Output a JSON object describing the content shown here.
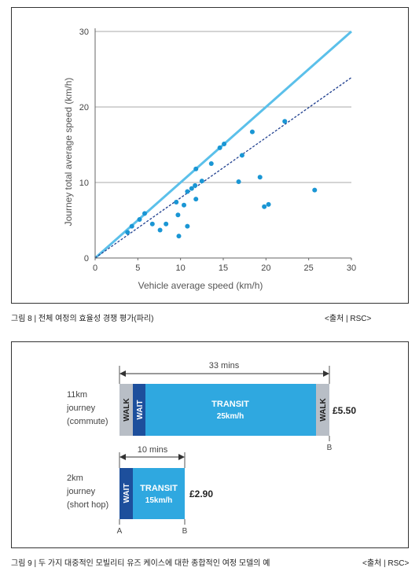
{
  "chart_data": [
    {
      "type": "scatter",
      "xlabel": "Vehicle average speed (km/h)",
      "ylabel": "Journey total average speed (km/h)",
      "xlim": [
        0,
        30
      ],
      "ylim": [
        0,
        30
      ],
      "xticks": [
        "0",
        "5",
        "10",
        "15",
        "20",
        "25",
        "30"
      ],
      "yticks": [
        "0",
        "10",
        "20",
        "30"
      ],
      "grid": "horizontal",
      "colors": {
        "points": "#1a96d4",
        "identity_line": "#5bc0ea",
        "trend_line": "#1f3f8f",
        "grid": "#aaaaaa"
      },
      "lines": [
        {
          "style": "solid",
          "x": [
            0,
            30
          ],
          "y": [
            0,
            30
          ]
        },
        {
          "style": "dashed",
          "x": [
            0,
            30
          ],
          "y": [
            0,
            23.9
          ]
        }
      ],
      "points": [
        {
          "x": 3.8,
          "y": 3.4
        },
        {
          "x": 4.3,
          "y": 4.2
        },
        {
          "x": 5.2,
          "y": 5.1
        },
        {
          "x": 5.8,
          "y": 5.9
        },
        {
          "x": 6.7,
          "y": 4.5
        },
        {
          "x": 7.6,
          "y": 3.7
        },
        {
          "x": 8.3,
          "y": 4.5
        },
        {
          "x": 9.5,
          "y": 7.4
        },
        {
          "x": 9.7,
          "y": 5.7
        },
        {
          "x": 9.8,
          "y": 2.9
        },
        {
          "x": 10.4,
          "y": 7.0
        },
        {
          "x": 10.8,
          "y": 4.2
        },
        {
          "x": 10.8,
          "y": 8.8
        },
        {
          "x": 11.3,
          "y": 9.2
        },
        {
          "x": 11.7,
          "y": 9.6
        },
        {
          "x": 11.8,
          "y": 7.8
        },
        {
          "x": 11.8,
          "y": 11.8
        },
        {
          "x": 12.5,
          "y": 10.2
        },
        {
          "x": 13.6,
          "y": 12.5
        },
        {
          "x": 14.6,
          "y": 14.6
        },
        {
          "x": 15.1,
          "y": 15.1
        },
        {
          "x": 16.8,
          "y": 10.1
        },
        {
          "x": 17.2,
          "y": 13.6
        },
        {
          "x": 18.4,
          "y": 16.7
        },
        {
          "x": 19.3,
          "y": 10.7
        },
        {
          "x": 19.8,
          "y": 6.8
        },
        {
          "x": 20.3,
          "y": 7.1
        },
        {
          "x": 22.2,
          "y": 18.1
        },
        {
          "x": 25.7,
          "y": 9.0
        }
      ]
    },
    {
      "type": "bar",
      "orientation": "horizontal-timeline",
      "colors": {
        "walk": "#b8bec6",
        "wait": "#1d4f9c",
        "transit": "#2fa8e0"
      },
      "journeys": [
        {
          "label": [
            "11km",
            "journey",
            "(commute)"
          ],
          "span_label": "33 mins",
          "duration_mins": 33,
          "segments": [
            {
              "kind": "walk",
              "label": "WALK"
            },
            {
              "kind": "wait",
              "label": "WAIT"
            },
            {
              "kind": "transit",
              "label": "TRANSIT",
              "sublabel": "25km/h"
            },
            {
              "kind": "walk",
              "label": "WALK"
            }
          ],
          "price": "£5.50",
          "end_label": "B"
        },
        {
          "label": [
            "2km",
            "journey",
            "(short hop)"
          ],
          "span_label": "10 mins",
          "duration_mins": 10,
          "segments": [
            {
              "kind": "wait",
              "label": "WAIT"
            },
            {
              "kind": "transit",
              "label": "TRANSIT",
              "sublabel": "15km/h"
            }
          ],
          "price": "£2.90",
          "start_label": "A",
          "end_label": "B"
        }
      ]
    }
  ],
  "captions": {
    "fig8": "그림 8 | 전체 여정의 효율성 경쟁 평가(파리)",
    "fig8_source": "<출처 | RSC>",
    "fig9": "그림 9 | 두 가지 대중적인 모빌리티 유즈 케이스에 대한 종합적인 여정 모델의 예",
    "fig9_source": "<출처 | RSC>"
  }
}
